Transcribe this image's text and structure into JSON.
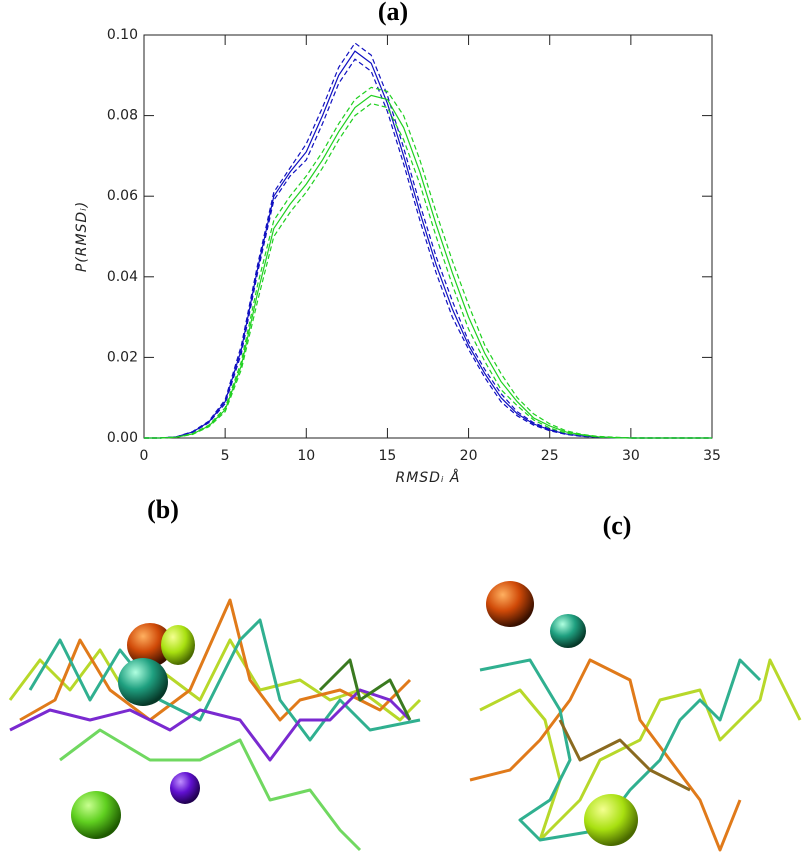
{
  "chart_data": {
    "type": "line",
    "title": "(a)",
    "xlabel": "RMSDᵢ  Å",
    "ylabel": "P(RMSDᵢ)",
    "x": [
      0,
      1,
      2,
      3,
      4,
      5,
      6,
      7,
      8,
      9,
      10,
      11,
      12,
      13,
      14,
      15,
      16,
      17,
      18,
      19,
      20,
      21,
      22,
      23,
      24,
      25,
      26,
      27,
      28,
      29,
      30,
      31,
      32,
      33,
      34,
      35
    ],
    "series": [
      {
        "color": "#1010c0",
        "style": "solid",
        "values": [
          0,
          0,
          0.0003,
          0.0015,
          0.004,
          0.009,
          0.022,
          0.042,
          0.06,
          0.066,
          0.071,
          0.08,
          0.09,
          0.096,
          0.093,
          0.083,
          0.07,
          0.056,
          0.043,
          0.032,
          0.023,
          0.016,
          0.01,
          0.006,
          0.0035,
          0.002,
          0.001,
          0.0005,
          0.0002,
          0.0001,
          0,
          0,
          0,
          0,
          0,
          0
        ]
      },
      {
        "color": "#1010c0",
        "style": "dashed",
        "values": [
          0,
          0,
          0.0003,
          0.0016,
          0.0042,
          0.0095,
          0.023,
          0.043,
          0.061,
          0.067,
          0.073,
          0.082,
          0.092,
          0.098,
          0.095,
          0.085,
          0.072,
          0.058,
          0.045,
          0.034,
          0.024,
          0.017,
          0.011,
          0.0065,
          0.0038,
          0.0022,
          0.0011,
          0.0005,
          0.0002,
          0.0001,
          0,
          0,
          0,
          0,
          0,
          0
        ]
      },
      {
        "color": "#1010c0",
        "style": "dashed",
        "values": [
          0,
          0,
          0.0003,
          0.0014,
          0.0038,
          0.0085,
          0.021,
          0.041,
          0.059,
          0.065,
          0.069,
          0.078,
          0.088,
          0.094,
          0.091,
          0.081,
          0.068,
          0.054,
          0.041,
          0.03,
          0.022,
          0.015,
          0.009,
          0.0055,
          0.0032,
          0.0018,
          0.0009,
          0.0004,
          0.0002,
          0.0001,
          0,
          0,
          0,
          0,
          0,
          0
        ]
      },
      {
        "color": "#20d020",
        "style": "solid",
        "values": [
          0,
          0,
          0.0002,
          0.001,
          0.003,
          0.007,
          0.018,
          0.036,
          0.052,
          0.058,
          0.063,
          0.069,
          0.076,
          0.082,
          0.085,
          0.084,
          0.077,
          0.066,
          0.053,
          0.041,
          0.03,
          0.021,
          0.014,
          0.009,
          0.005,
          0.003,
          0.0015,
          0.0008,
          0.0003,
          0.0001,
          0,
          0,
          0,
          0,
          0,
          0
        ]
      },
      {
        "color": "#20d020",
        "style": "dashed",
        "values": [
          0,
          0,
          0.0002,
          0.0011,
          0.0032,
          0.0075,
          0.019,
          0.038,
          0.054,
          0.06,
          0.065,
          0.071,
          0.078,
          0.084,
          0.087,
          0.086,
          0.08,
          0.069,
          0.056,
          0.044,
          0.033,
          0.023,
          0.016,
          0.01,
          0.006,
          0.0035,
          0.0018,
          0.0009,
          0.0004,
          0.0002,
          0,
          0,
          0,
          0,
          0,
          0
        ]
      },
      {
        "color": "#20d020",
        "style": "dashed",
        "values": [
          0,
          0,
          0.0002,
          0.0009,
          0.0028,
          0.0065,
          0.017,
          0.034,
          0.05,
          0.056,
          0.061,
          0.067,
          0.074,
          0.08,
          0.083,
          0.082,
          0.074,
          0.063,
          0.05,
          0.038,
          0.027,
          0.019,
          0.012,
          0.008,
          0.0045,
          0.0025,
          0.0012,
          0.0007,
          0.0002,
          0.0001,
          0,
          0,
          0,
          0,
          0,
          0
        ]
      }
    ],
    "xlim": [
      0,
      35
    ],
    "xticks": [
      0,
      5,
      10,
      15,
      20,
      25,
      30,
      35
    ],
    "ylim": [
      0,
      0.1
    ],
    "yticks": [
      {
        "value": 0,
        "label": "0.00"
      },
      {
        "value": 0.02,
        "label": "0.02"
      },
      {
        "value": 0.04,
        "label": "0.04"
      },
      {
        "value": 0.06,
        "label": "0.06"
      },
      {
        "value": 0.08,
        "label": "0.08"
      },
      {
        "value": 0.1,
        "label": "0.10"
      }
    ],
    "grid": false
  },
  "panel_labels": [
    "(b)",
    "(c)"
  ]
}
